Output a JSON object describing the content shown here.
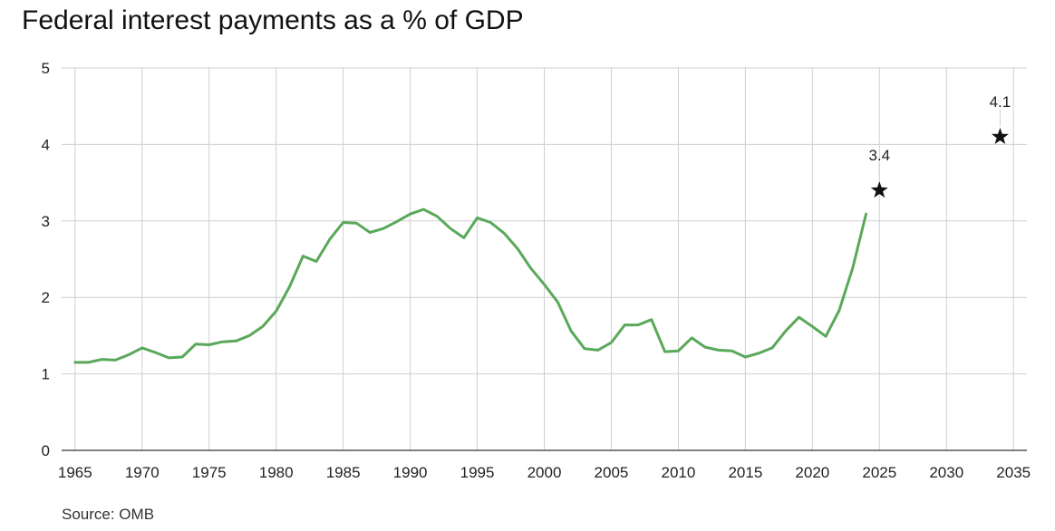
{
  "chart_data": {
    "type": "line",
    "title": "Federal interest payments as a % of GDP",
    "xlabel": "",
    "ylabel": "",
    "source": "Source: OMB",
    "xlim": [
      1964,
      2036
    ],
    "ylim": [
      0,
      5
    ],
    "x_ticks": [
      1965,
      1970,
      1975,
      1980,
      1985,
      1990,
      1995,
      2000,
      2005,
      2010,
      2015,
      2020,
      2025,
      2030,
      2035
    ],
    "y_ticks": [
      0,
      1,
      2,
      3,
      4,
      5
    ],
    "grid": true,
    "line_color": "#5aa85a",
    "series": [
      {
        "x": [
          1965,
          1966,
          1967,
          1968,
          1969,
          1970,
          1971,
          1972,
          1973,
          1974,
          1975,
          1976,
          1977,
          1978,
          1979,
          1980,
          1981,
          1982,
          1983,
          1984,
          1985,
          1986,
          1987,
          1988,
          1989,
          1990,
          1991,
          1992,
          1993,
          1994,
          1995,
          1996,
          1997,
          1998,
          1999,
          2000,
          2001,
          2002,
          2003,
          2004,
          2005,
          2006,
          2007,
          2008,
          2009,
          2010,
          2011,
          2012,
          2013,
          2014,
          2015,
          2016,
          2017,
          2018,
          2019,
          2020,
          2021,
          2022,
          2023,
          2024
        ],
        "values": [
          1.15,
          1.15,
          1.19,
          1.18,
          1.25,
          1.34,
          1.28,
          1.21,
          1.22,
          1.39,
          1.38,
          1.42,
          1.43,
          1.5,
          1.62,
          1.82,
          2.14,
          2.54,
          2.47,
          2.76,
          2.98,
          2.97,
          2.85,
          2.9,
          2.99,
          3.09,
          3.15,
          3.06,
          2.9,
          2.78,
          3.04,
          2.98,
          2.84,
          2.64,
          2.38,
          2.17,
          1.94,
          1.56,
          1.33,
          1.31,
          1.41,
          1.64,
          1.64,
          1.71,
          1.29,
          1.3,
          1.47,
          1.35,
          1.31,
          1.3,
          1.22,
          1.27,
          1.34,
          1.56,
          1.74,
          1.62,
          1.49,
          1.83,
          2.38,
          3.09
        ]
      }
    ],
    "projections": [
      {
        "x": 2025,
        "value": 3.4,
        "label": "3.4",
        "marker": "star"
      },
      {
        "x": 2034,
        "value": 4.1,
        "label": "4.1",
        "marker": "star"
      }
    ]
  }
}
